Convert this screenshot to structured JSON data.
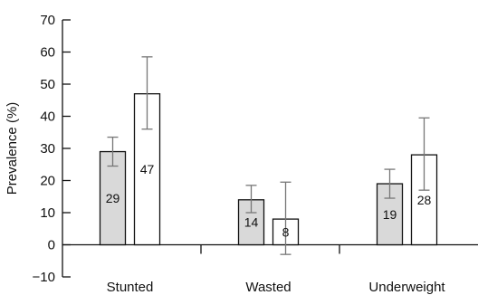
{
  "chart_data": {
    "type": "bar",
    "title": "",
    "xlabel": "",
    "ylabel": "Prevalence (%)",
    "ylim": [
      -10,
      70
    ],
    "yticks": [
      -10,
      0,
      10,
      20,
      30,
      40,
      50,
      60,
      70
    ],
    "ytick_labels": [
      "−10",
      "0",
      "10",
      "20",
      "30",
      "40",
      "50",
      "60",
      "70"
    ],
    "categories": [
      "Stunted",
      "Wasted",
      "Underweight"
    ],
    "grid": false,
    "legend": "none",
    "series": [
      {
        "values": [
          29,
          14,
          19
        ],
        "labels": [
          "29",
          "14",
          "19"
        ],
        "err_low": [
          24.5,
          10,
          14.5
        ],
        "err_high": [
          33.5,
          18.5,
          23.5
        ],
        "fill": "#d9d9d9"
      },
      {
        "values": [
          47,
          8,
          28
        ],
        "labels": [
          "47",
          "8",
          "28"
        ],
        "err_low": [
          36,
          -3,
          17
        ],
        "err_high": [
          58.5,
          19.5,
          39.5
        ],
        "fill": "#ffffff"
      }
    ],
    "bar_edge_color": "#111111",
    "error_bar_color": "#777777"
  }
}
